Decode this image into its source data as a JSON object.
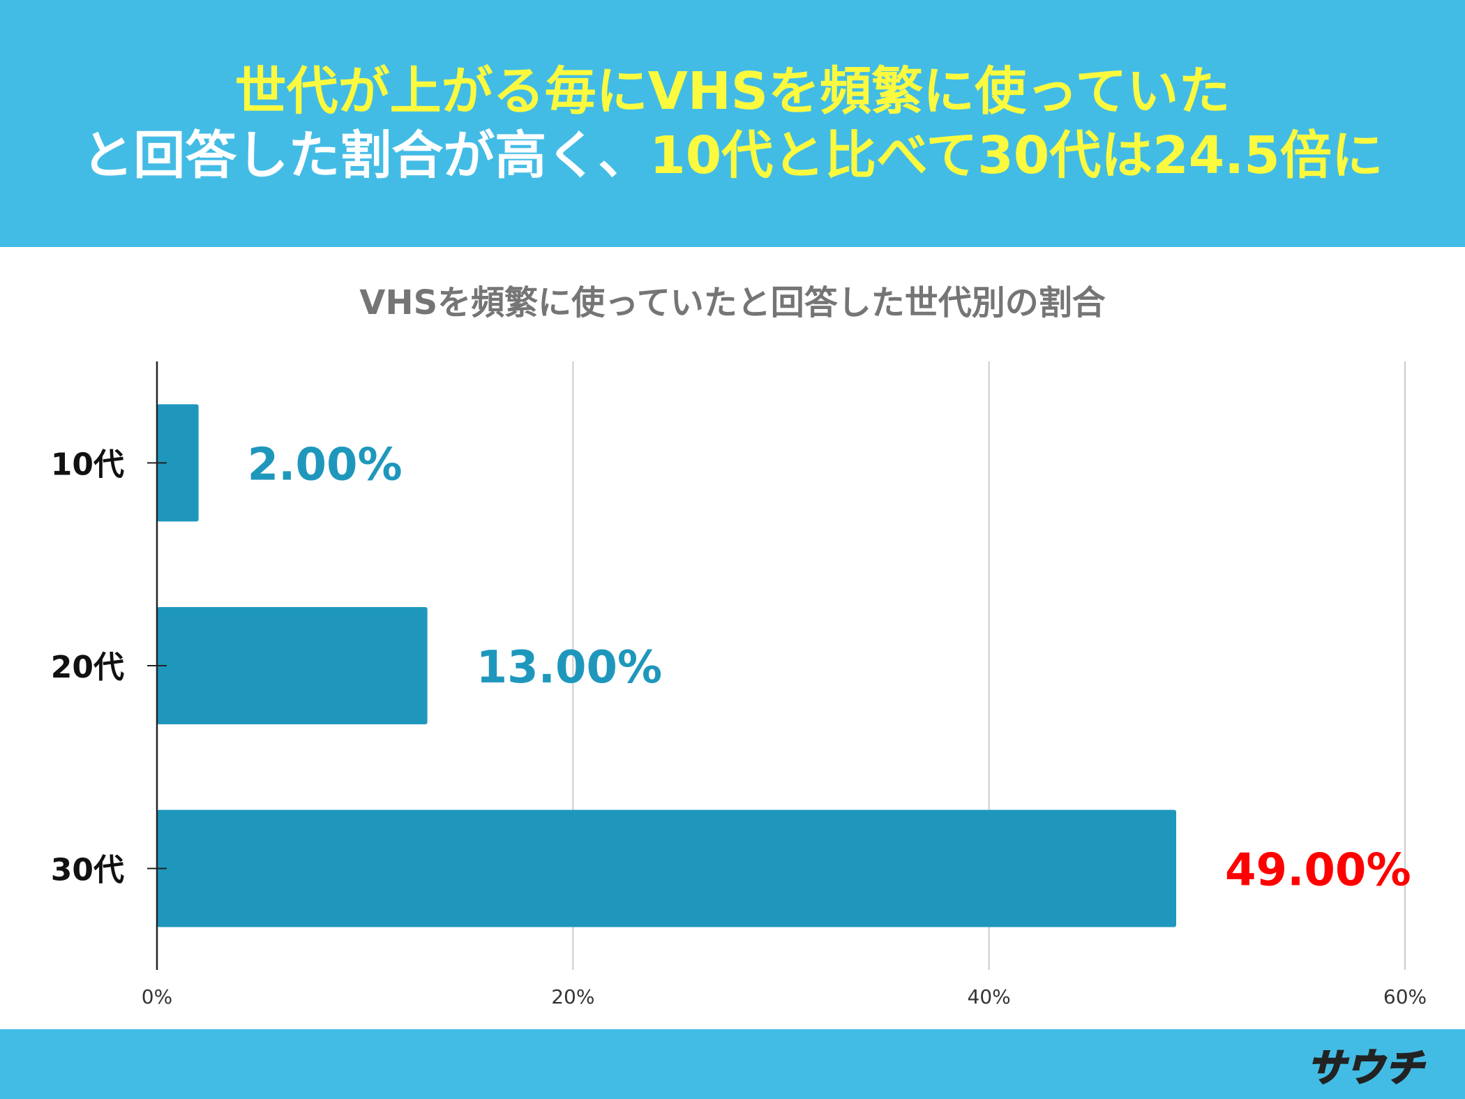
{
  "header": {
    "line1": "世代が上がる毎にVHSを頻繁に使っていた",
    "line2_a": "と回答した割合が高く、",
    "line2_b": "10代と比べて30代は24.5倍に"
  },
  "colors": {
    "header_bg": "#43bce5",
    "highlight_text": "#fbfa3f",
    "bar": "#1f97bc",
    "label_default": "#1f97bc",
    "label_highlight": "#ff0000"
  },
  "chart_data": {
    "type": "bar",
    "orientation": "horizontal",
    "title": "VHSを頻繁に使っていたと回答した世代別の割合",
    "categories": [
      "10代",
      "20代",
      "30代"
    ],
    "values": [
      2.0,
      13.0,
      49.0
    ],
    "data_labels": [
      "2.00%",
      "13.00%",
      "49.00%"
    ],
    "label_colors": [
      "#1f97bc",
      "#1f97bc",
      "#ff0000"
    ],
    "xlim": [
      0,
      60
    ],
    "x_ticks": [
      0,
      20,
      40,
      60
    ],
    "x_tick_labels": [
      "0%",
      "20%",
      "40%",
      "60%"
    ],
    "grid": true,
    "xlabel": "",
    "ylabel": ""
  },
  "footer": {
    "logo_text": "サウチ"
  }
}
